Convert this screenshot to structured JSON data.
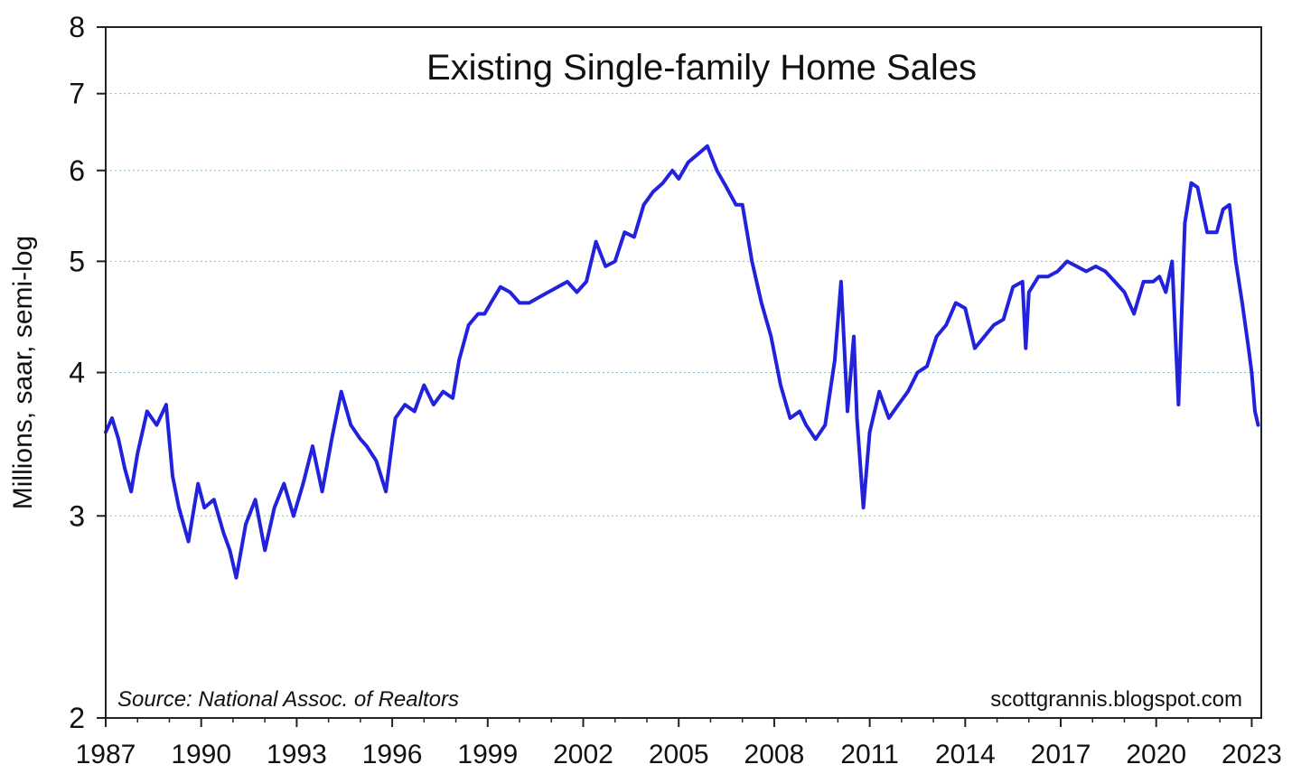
{
  "chart_data": {
    "type": "line",
    "title": "Existing Single-family Home Sales",
    "ylabel": "Millions, saar, semi-log",
    "yscale": "log",
    "ylim": [
      2,
      8
    ],
    "xlim": [
      1987,
      2023.3
    ],
    "y_ticks": [
      {
        "value": 2,
        "label": "2"
      },
      {
        "value": 3,
        "label": "3"
      },
      {
        "value": 4,
        "label": "4"
      },
      {
        "value": 5,
        "label": "5"
      },
      {
        "value": 6,
        "label": "6"
      },
      {
        "value": 7,
        "label": "7"
      },
      {
        "value": 8,
        "label": "8"
      }
    ],
    "x_ticks": [
      {
        "value": 1987,
        "label": "1987"
      },
      {
        "value": 1990,
        "label": "1990"
      },
      {
        "value": 1993,
        "label": "1993"
      },
      {
        "value": 1996,
        "label": "1996"
      },
      {
        "value": 1999,
        "label": "1999"
      },
      {
        "value": 2002,
        "label": "2002"
      },
      {
        "value": 2005,
        "label": "2005"
      },
      {
        "value": 2008,
        "label": "2008"
      },
      {
        "value": 2011,
        "label": "2011"
      },
      {
        "value": 2014,
        "label": "2014"
      },
      {
        "value": 2017,
        "label": "2017"
      },
      {
        "value": 2020,
        "label": "2020"
      },
      {
        "value": 2023,
        "label": "2023"
      }
    ],
    "grid": "horizontal-dotted",
    "line_color": "#2222dd",
    "series": [
      {
        "x": [
          1987.0,
          1987.2,
          1987.4,
          1987.6,
          1987.8,
          1988.0,
          1988.3,
          1988.6,
          1988.9,
          1989.1,
          1989.3,
          1989.6,
          1989.9,
          1990.1,
          1990.4,
          1990.7,
          1990.9,
          1991.1,
          1991.4,
          1991.7,
          1992.0,
          1992.3,
          1992.6,
          1992.9,
          1993.2,
          1993.5,
          1993.8,
          1994.1,
          1994.4,
          1994.7,
          1995.0,
          1995.2,
          1995.5,
          1995.8,
          1996.1,
          1996.4,
          1996.7,
          1997.0,
          1997.3,
          1997.6,
          1997.9,
          1998.1,
          1998.4,
          1998.7,
          1998.9,
          1999.1,
          1999.4,
          1999.7,
          2000.0,
          2000.3,
          2000.6,
          2000.9,
          2001.2,
          2001.5,
          2001.8,
          2002.1,
          2002.4,
          2002.7,
          2003.0,
          2003.3,
          2003.6,
          2003.9,
          2004.2,
          2004.5,
          2004.8,
          2005.0,
          2005.3,
          2005.6,
          2005.9,
          2006.2,
          2006.5,
          2006.8,
          2007.0,
          2007.3,
          2007.6,
          2007.9,
          2008.2,
          2008.5,
          2008.8,
          2009.0,
          2009.3,
          2009.6,
          2009.9,
          2010.1,
          2010.3,
          2010.5,
          2010.6,
          2010.8,
          2011.0,
          2011.3,
          2011.6,
          2011.9,
          2012.2,
          2012.5,
          2012.8,
          2013.1,
          2013.4,
          2013.7,
          2014.0,
          2014.3,
          2014.6,
          2014.9,
          2015.2,
          2015.5,
          2015.8,
          2015.9,
          2016.0,
          2016.3,
          2016.6,
          2016.9,
          2017.2,
          2017.5,
          2017.8,
          2018.1,
          2018.4,
          2018.7,
          2019.0,
          2019.3,
          2019.6,
          2019.9,
          2020.1,
          2020.3,
          2020.5,
          2020.7,
          2020.9,
          2021.1,
          2021.3,
          2021.6,
          2021.9,
          2022.1,
          2022.3,
          2022.5,
          2022.7,
          2022.9,
          2023.0,
          2023.1,
          2023.2
        ],
        "y": [
          3.55,
          3.65,
          3.5,
          3.3,
          3.15,
          3.4,
          3.7,
          3.6,
          3.75,
          3.25,
          3.05,
          2.85,
          3.2,
          3.05,
          3.1,
          2.9,
          2.8,
          2.65,
          2.95,
          3.1,
          2.8,
          3.05,
          3.2,
          3.0,
          3.2,
          3.45,
          3.15,
          3.5,
          3.85,
          3.6,
          3.5,
          3.45,
          3.35,
          3.15,
          3.65,
          3.75,
          3.7,
          3.9,
          3.75,
          3.85,
          3.8,
          4.1,
          4.4,
          4.5,
          4.5,
          4.6,
          4.75,
          4.7,
          4.6,
          4.6,
          4.65,
          4.7,
          4.75,
          4.8,
          4.7,
          4.8,
          5.2,
          4.95,
          5.0,
          5.3,
          5.25,
          5.6,
          5.75,
          5.85,
          6.0,
          5.9,
          6.1,
          6.2,
          6.3,
          6.0,
          5.8,
          5.6,
          5.6,
          5.0,
          4.6,
          4.3,
          3.9,
          3.65,
          3.7,
          3.6,
          3.5,
          3.6,
          4.1,
          4.8,
          3.7,
          4.3,
          3.65,
          3.05,
          3.55,
          3.85,
          3.65,
          3.75,
          3.85,
          4.0,
          4.05,
          4.3,
          4.4,
          4.6,
          4.55,
          4.2,
          4.3,
          4.4,
          4.45,
          4.75,
          4.8,
          4.2,
          4.7,
          4.85,
          4.85,
          4.9,
          5.0,
          4.95,
          4.9,
          4.95,
          4.9,
          4.8,
          4.7,
          4.5,
          4.8,
          4.8,
          4.85,
          4.7,
          5.0,
          3.75,
          5.4,
          5.85,
          5.8,
          5.3,
          5.3,
          5.55,
          5.6,
          5.0,
          4.6,
          4.2,
          4.0,
          3.7,
          3.6
        ]
      }
    ],
    "source_note": "Source:  National Assoc. of Realtors",
    "credit": "scottgrannis.blogspot.com"
  }
}
